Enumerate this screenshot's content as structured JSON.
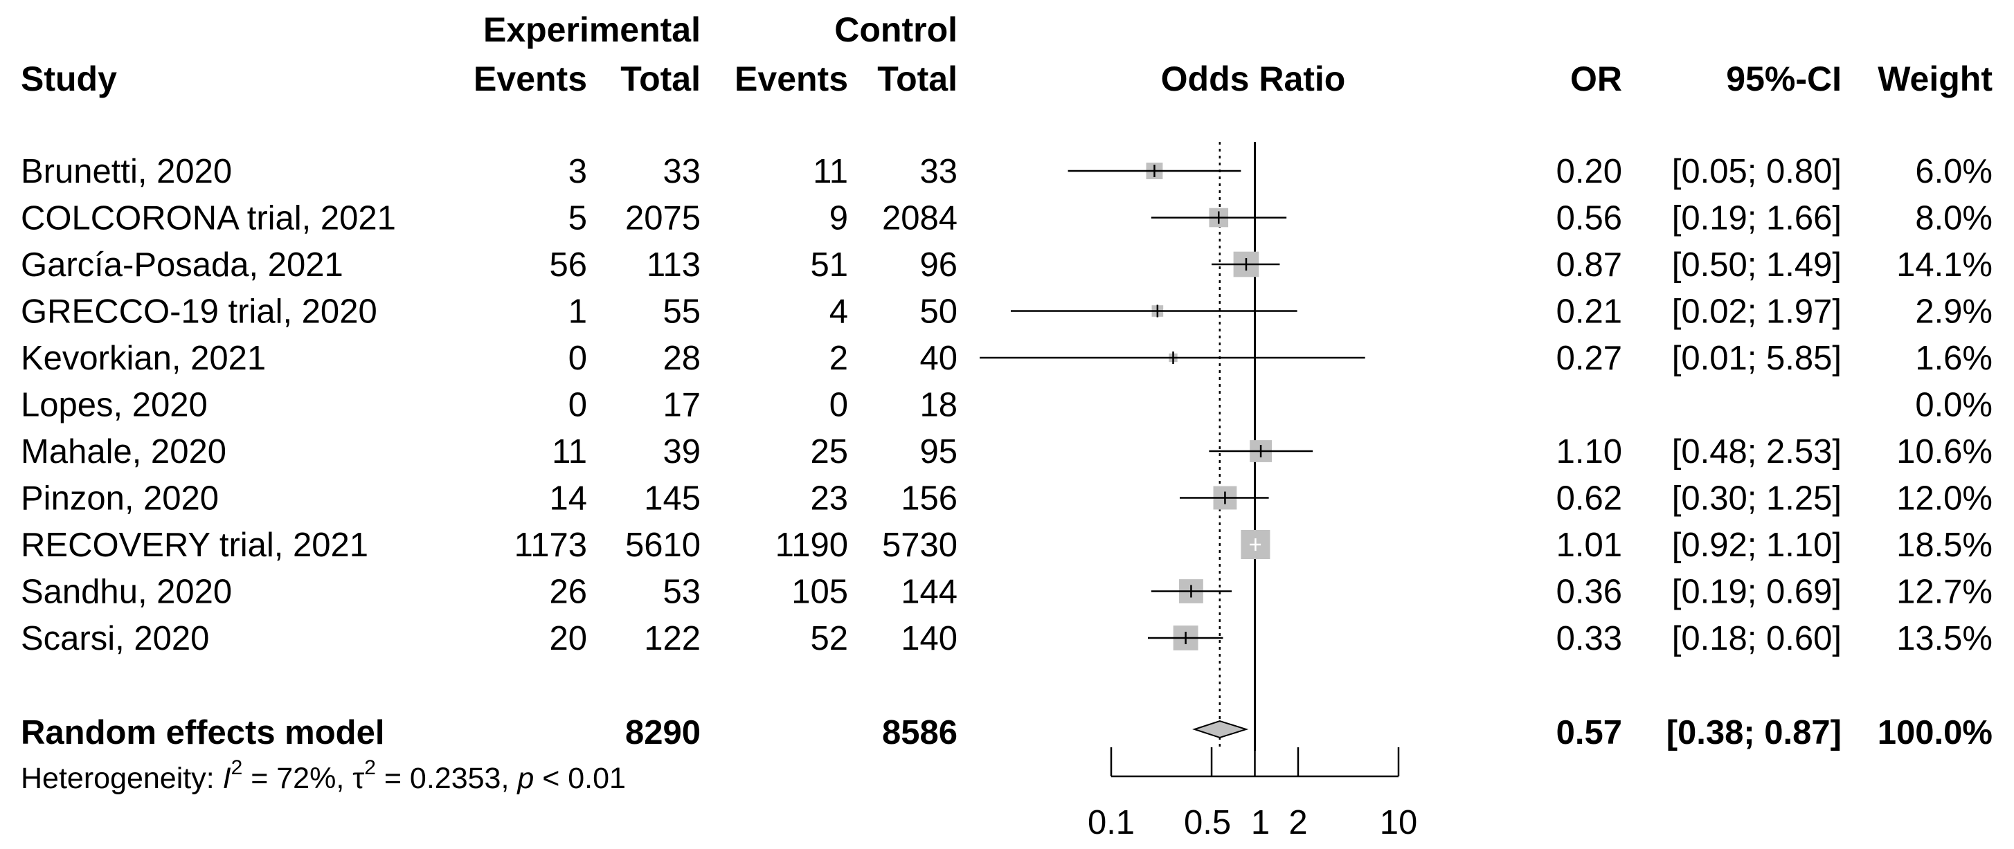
{
  "chart_data": {
    "type": "forest",
    "title": "Odds Ratio",
    "scale": "log",
    "xlim": [
      0.1,
      10
    ],
    "x_ticks": [
      0.1,
      0.5,
      1,
      2,
      10
    ],
    "x_tick_labels": [
      "0.1",
      "0.5",
      "1",
      "2",
      "10"
    ],
    "null_value": 1,
    "pooled_reference": 0.57,
    "headers": {
      "study": "Study",
      "experimental_group": "Experimental",
      "control_group": "Control",
      "events": "Events",
      "total": "Total",
      "plot_title": "Odds Ratio",
      "or": "OR",
      "ci": "95%-CI",
      "weight": "Weight"
    },
    "studies": [
      {
        "name": "Brunetti, 2020",
        "e_events": "3",
        "e_total": "33",
        "c_events": "11",
        "c_total": "33",
        "or": 0.2,
        "lo": 0.05,
        "hi": 0.8,
        "or_text": "0.20",
        "ci_text": "[0.05; 0.80]",
        "weight": 6.0,
        "weight_text": "6.0%"
      },
      {
        "name": "COLCORONA trial, 2021",
        "e_events": "5",
        "e_total": "2075",
        "c_events": "9",
        "c_total": "2084",
        "or": 0.56,
        "lo": 0.19,
        "hi": 1.66,
        "or_text": "0.56",
        "ci_text": "[0.19; 1.66]",
        "weight": 8.0,
        "weight_text": "8.0%"
      },
      {
        "name": "García-Posada, 2021",
        "e_events": "56",
        "e_total": "113",
        "c_events": "51",
        "c_total": "96",
        "or": 0.87,
        "lo": 0.5,
        "hi": 1.49,
        "or_text": "0.87",
        "ci_text": "[0.50; 1.49]",
        "weight": 14.1,
        "weight_text": "14.1%"
      },
      {
        "name": "GRECCO-19 trial, 2020",
        "e_events": "1",
        "e_total": "55",
        "c_events": "4",
        "c_total": "50",
        "or": 0.21,
        "lo": 0.02,
        "hi": 1.97,
        "or_text": "0.21",
        "ci_text": "[0.02; 1.97]",
        "weight": 2.9,
        "weight_text": "2.9%"
      },
      {
        "name": "Kevorkian, 2021",
        "e_events": "0",
        "e_total": "28",
        "c_events": "2",
        "c_total": "40",
        "or": 0.27,
        "lo": 0.01,
        "hi": 5.85,
        "or_text": "0.27",
        "ci_text": "[0.01; 5.85]",
        "weight": 1.6,
        "weight_text": "1.6%"
      },
      {
        "name": "Lopes, 2020",
        "e_events": "0",
        "e_total": "17",
        "c_events": "0",
        "c_total": "18",
        "or": null,
        "lo": null,
        "hi": null,
        "or_text": "",
        "ci_text": "",
        "weight": 0.0,
        "weight_text": "0.0%"
      },
      {
        "name": "Mahale, 2020",
        "e_events": "11",
        "e_total": "39",
        "c_events": "25",
        "c_total": "95",
        "or": 1.1,
        "lo": 0.48,
        "hi": 2.53,
        "or_text": "1.10",
        "ci_text": "[0.48; 2.53]",
        "weight": 10.6,
        "weight_text": "10.6%"
      },
      {
        "name": "Pinzon, 2020",
        "e_events": "14",
        "e_total": "145",
        "c_events": "23",
        "c_total": "156",
        "or": 0.62,
        "lo": 0.3,
        "hi": 1.25,
        "or_text": "0.62",
        "ci_text": "[0.30; 1.25]",
        "weight": 12.0,
        "weight_text": "12.0%"
      },
      {
        "name": "RECOVERY trial, 2021",
        "e_events": "1173",
        "e_total": "5610",
        "c_events": "1190",
        "c_total": "5730",
        "or": 1.01,
        "lo": 0.92,
        "hi": 1.1,
        "or_text": "1.01",
        "ci_text": "[0.92; 1.10]",
        "weight": 18.5,
        "weight_text": "18.5%"
      },
      {
        "name": "Sandhu, 2020",
        "e_events": "26",
        "e_total": "53",
        "c_events": "105",
        "c_total": "144",
        "or": 0.36,
        "lo": 0.19,
        "hi": 0.69,
        "or_text": "0.36",
        "ci_text": "[0.19; 0.69]",
        "weight": 12.7,
        "weight_text": "12.7%"
      },
      {
        "name": "Scarsi, 2020",
        "e_events": "20",
        "e_total": "122",
        "c_events": "52",
        "c_total": "140",
        "or": 0.33,
        "lo": 0.18,
        "hi": 0.6,
        "or_text": "0.33",
        "ci_text": "[0.18; 0.60]",
        "weight": 13.5,
        "weight_text": "13.5%"
      }
    ],
    "summary": {
      "name": "Random effects model",
      "e_total": "8290",
      "c_total": "8586",
      "or": 0.57,
      "lo": 0.38,
      "hi": 0.87,
      "or_text": "0.57",
      "ci_text": "[0.38; 0.87]",
      "weight_text": "100.0%"
    },
    "heterogeneity": {
      "prefix": "Heterogeneity: ",
      "i2_symbol": "I",
      "i2_text": " = 72%, ",
      "tau_symbol": "τ",
      "tau_text": " = 0.2353, ",
      "p_symbol": "p",
      "p_text": " < 0.01",
      "superscript": "2"
    },
    "colors": {
      "box": "#c0c0c0",
      "diamond": "#c0c0c0",
      "line": "#000000",
      "summary_cross": "#ffffff"
    }
  }
}
